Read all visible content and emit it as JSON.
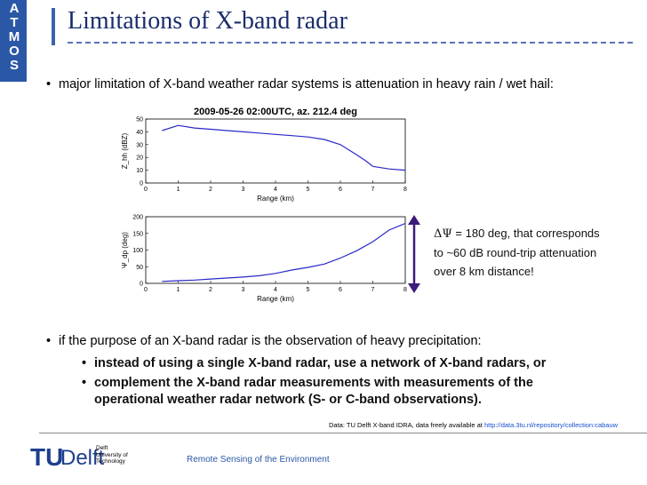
{
  "side_tab": {
    "letters": [
      "A",
      "T",
      "M",
      "O",
      "S"
    ],
    "color": "#2a58a6"
  },
  "slide": {
    "title": "Limitations of X-band radar",
    "bullet1": "major limitation of X-band weather radar systems is attenuation in heavy rain / wet hail:",
    "bullet2": "if the purpose of an X-band radar is the observation of heavy precipitation:",
    "sub1": "instead of using a single X-band radar, use a network of X-band radars, or",
    "sub2": "complement the X-band radar measurements with measurements of the operational weather radar network (S- or C-band observations)."
  },
  "annotation": {
    "delta_symbol": "ΔΨ",
    "line1_rest": " = 180 deg, that corresponds",
    "line2": "to ~60 dB round-trip attenuation",
    "line3": "over 8 km distance!",
    "arrow_color": "#3a1a7a"
  },
  "credit": {
    "text": "Data: TU Delft X-band IDRA, data freely available at ",
    "link": "http://data.3tu.nl/repository/collection:cabauw"
  },
  "footer": {
    "logo_tu": "TU",
    "logo_delft": "Delft",
    "uni_line1": "Delft",
    "uni_line2": "University of",
    "uni_line3": "Technology",
    "label": "Remote Sensing of the Environment"
  },
  "chart_data": [
    {
      "type": "line",
      "title": "2009-05-26 02:00UTC, az. 212.4 deg",
      "xlabel": "Range (km)",
      "ylabel": "Z_hh (dBZ)",
      "xlim": [
        0,
        8
      ],
      "ylim": [
        0,
        50
      ],
      "xticks": [
        "0",
        "1",
        "2",
        "3",
        "4",
        "5",
        "6",
        "7",
        "8"
      ],
      "yticks": [
        "0",
        "10",
        "20",
        "30",
        "40",
        "50"
      ],
      "grid": false,
      "color": "#2828c8",
      "series": [
        {
          "x": [
            0.5,
            1.0,
            1.5,
            2.0,
            2.5,
            3.0,
            3.5,
            4.0,
            4.5,
            5.0,
            5.5,
            6.0,
            6.5,
            6.8,
            7.0,
            7.5,
            8.0
          ],
          "y": [
            41,
            45,
            43,
            42,
            41,
            40,
            39,
            38,
            37,
            36,
            34,
            30,
            22,
            17,
            13,
            11,
            10
          ]
        }
      ]
    },
    {
      "type": "line",
      "title": "",
      "xlabel": "Range (km)",
      "ylabel": "Ψ_dp (deg)",
      "xlim": [
        0,
        8
      ],
      "ylim": [
        0,
        200
      ],
      "xticks": [
        "0",
        "1",
        "2",
        "3",
        "4",
        "5",
        "6",
        "7",
        "8"
      ],
      "yticks": [
        "0",
        "50",
        "100",
        "150",
        "200"
      ],
      "grid": false,
      "color": "#2828c8",
      "series": [
        {
          "x": [
            0.5,
            1.0,
            1.5,
            2.0,
            2.5,
            3.0,
            3.5,
            4.0,
            4.5,
            5.0,
            5.5,
            6.0,
            6.5,
            7.0,
            7.5,
            8.0
          ],
          "y": [
            6,
            8,
            10,
            13,
            16,
            19,
            23,
            30,
            40,
            48,
            58,
            76,
            98,
            125,
            160,
            180
          ]
        }
      ]
    }
  ]
}
